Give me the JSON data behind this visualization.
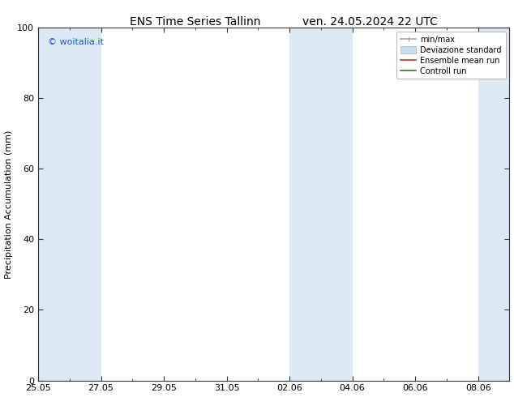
{
  "title_left": "ENS Time Series Tallinn",
  "title_right": "ven. 24.05.2024 22 UTC",
  "ylabel": "Precipitation Accumulation (mm)",
  "xtick_labels": [
    "25.05",
    "27.05",
    "29.05",
    "31.05",
    "02.06",
    "04.06",
    "06.06",
    "08.06"
  ],
  "xtick_positions": [
    0,
    2,
    4,
    6,
    8,
    10,
    12,
    14
  ],
  "minor_xtick_positions": [
    1,
    3,
    5,
    7,
    9,
    11,
    13
  ],
  "ylim": [
    0,
    100
  ],
  "xlim": [
    0,
    15
  ],
  "ytick_positions": [
    0,
    20,
    40,
    60,
    80,
    100
  ],
  "shaded_bands": [
    {
      "xstart": 0,
      "xend": 1.0,
      "color": "#dce9f5"
    },
    {
      "xstart": 1.0,
      "xend": 2.0,
      "color": "#dce9f5"
    },
    {
      "xstart": 8.0,
      "xend": 9.0,
      "color": "#dce9f5"
    },
    {
      "xstart": 9.0,
      "xend": 10.0,
      "color": "#dce9f5"
    },
    {
      "xstart": 14.0,
      "xend": 15.0,
      "color": "#dce9f5"
    }
  ],
  "watermark_text": "© woitalia.it",
  "watermark_color": "#1a56cc",
  "legend_items": [
    {
      "label": "min/max",
      "color": "#aaaaaa",
      "lw": 1.2,
      "style": "errorbar"
    },
    {
      "label": "Deviazione standard",
      "color": "#c8dff0",
      "lw": 5,
      "style": "bar"
    },
    {
      "label": "Ensemble mean run",
      "color": "#dd2222",
      "lw": 1.2,
      "style": "line"
    },
    {
      "label": "Controll run",
      "color": "#228822",
      "lw": 1.2,
      "style": "line"
    }
  ],
  "bg_color": "#ffffff",
  "plot_bg_color": "#ffffff",
  "spine_color": "#333333",
  "tick_color": "#333333",
  "title_fontsize": 10,
  "label_fontsize": 8,
  "tick_fontsize": 8,
  "legend_fontsize": 7
}
